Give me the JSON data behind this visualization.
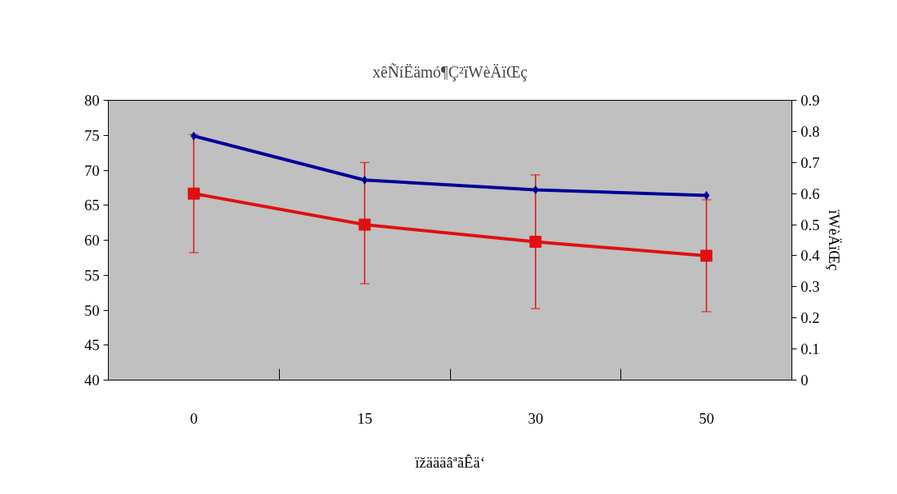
{
  "chart_data": {
    "type": "line",
    "title": "xêÑíËämó¶Ç²ïWèÄïŒç",
    "xlabel": "ïžäääâªãÊä‘",
    "y2label": "ïWèÄïŒç",
    "categories": [
      "0",
      "15",
      "30",
      "50"
    ],
    "ylim": [
      40,
      80
    ],
    "yticks": [
      40,
      45,
      50,
      55,
      60,
      65,
      70,
      75,
      80
    ],
    "y2lim": [
      0,
      0.9
    ],
    "y2ticks": [
      0,
      0.1,
      0.2,
      0.3,
      0.4,
      0.5,
      0.6,
      0.7,
      0.8,
      0.9
    ],
    "grid": false,
    "series": [
      {
        "color": "#000099",
        "values": [
          74.9,
          68.6,
          67.2,
          66.4
        ],
        "marker": "diamond"
      },
      {
        "color": "#e01010",
        "values": [
          0.6,
          0.5,
          0.445,
          0.4
        ],
        "axis": "y2",
        "marker": "square",
        "errors": [
          [
            0.41,
            0.79
          ],
          [
            0.31,
            0.7
          ],
          [
            0.23,
            0.66
          ],
          [
            0.22,
            0.58
          ]
        ]
      }
    ]
  }
}
